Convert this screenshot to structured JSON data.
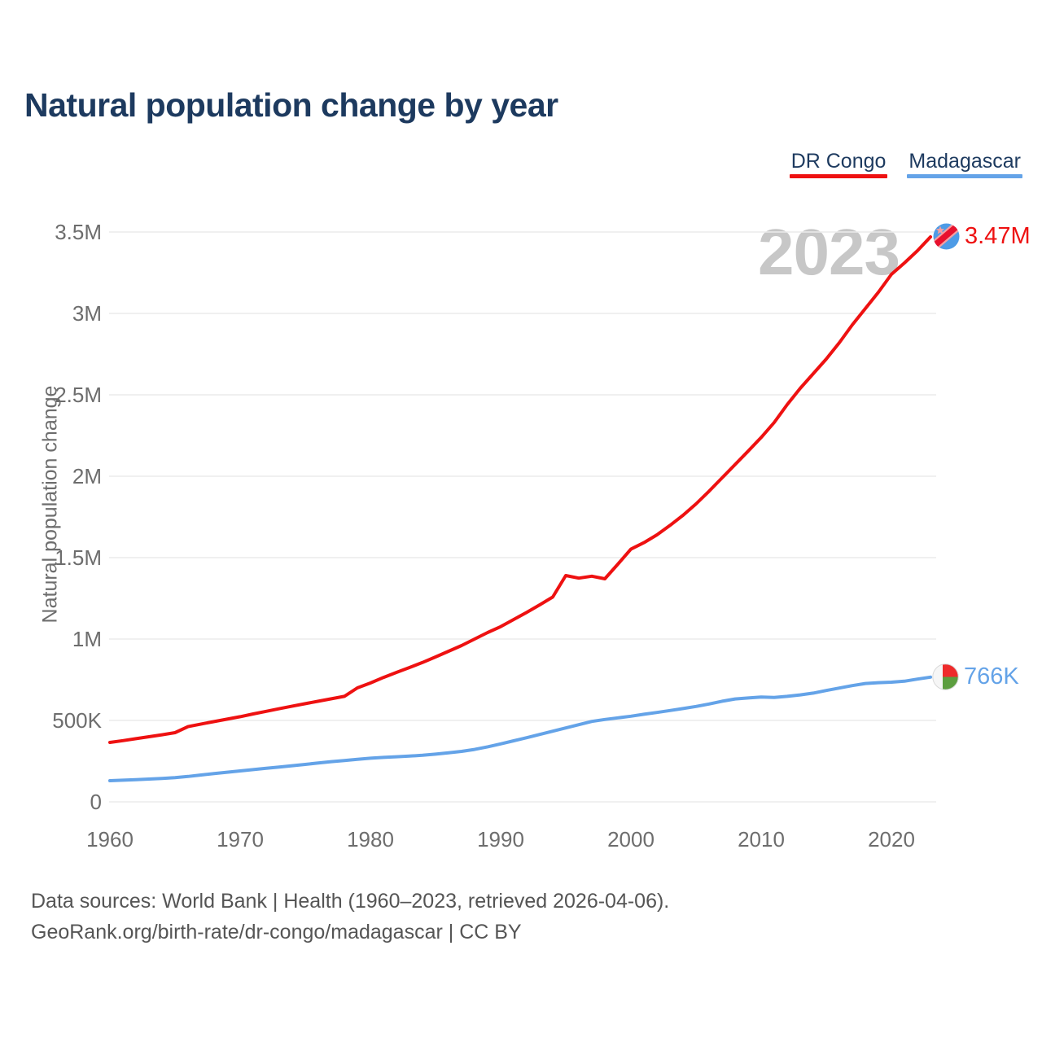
{
  "title": "Natural population change by year",
  "watermark": "2023",
  "colors": {
    "dr_congo": "#ee1111",
    "madagascar": "#64a3e8",
    "title_navy": "#1d3a5f",
    "tick_gray": "#6d6d6d",
    "gridline": "#ececec",
    "watermark_gray": "#c7c7c7",
    "footer_gray": "#555555"
  },
  "legend": {
    "items": [
      {
        "label": "DR Congo",
        "color": "#ee1111"
      },
      {
        "label": "Madagascar",
        "color": "#64a3e8"
      }
    ]
  },
  "y_axis": {
    "title": "Natural population change",
    "ticks": [
      {
        "value": 3500000,
        "label": "3.5M"
      },
      {
        "value": 3000000,
        "label": "3M"
      },
      {
        "value": 2500000,
        "label": "2.5M"
      },
      {
        "value": 2000000,
        "label": "2M"
      },
      {
        "value": 1500000,
        "label": "1.5M"
      },
      {
        "value": 1000000,
        "label": "1M"
      },
      {
        "value": 500000,
        "label": "500K"
      },
      {
        "value": 0,
        "label": "0"
      }
    ]
  },
  "x_axis": {
    "ticks": [
      {
        "value": 1960,
        "label": "1960"
      },
      {
        "value": 1970,
        "label": "1970"
      },
      {
        "value": 1980,
        "label": "1980"
      },
      {
        "value": 1990,
        "label": "1990"
      },
      {
        "value": 2000,
        "label": "2000"
      },
      {
        "value": 2010,
        "label": "2010"
      },
      {
        "value": 2020,
        "label": "2020"
      }
    ]
  },
  "end_labels": {
    "dr_congo": "3.47M",
    "madagascar": "766K"
  },
  "footer": {
    "line1": "Data sources: World Bank | Health (1960–2023, retrieved 2026-04-06).",
    "line2": "GeoRank.org/birth-rate/dr-congo/madagascar | CC BY"
  },
  "chart_data": {
    "type": "line",
    "title": "Natural population change by year",
    "xlabel": "year",
    "ylabel": "Natural population change",
    "xlim": [
      1960,
      2023
    ],
    "ylim": [
      0,
      3500000
    ],
    "grid": "horizontal",
    "legend_position": "top-right",
    "x": [
      1960,
      1961,
      1962,
      1963,
      1964,
      1965,
      1966,
      1967,
      1968,
      1969,
      1970,
      1971,
      1972,
      1973,
      1974,
      1975,
      1976,
      1977,
      1978,
      1979,
      1980,
      1981,
      1982,
      1983,
      1984,
      1985,
      1986,
      1987,
      1988,
      1989,
      1990,
      1991,
      1992,
      1993,
      1994,
      1995,
      1996,
      1997,
      1998,
      1999,
      2000,
      2001,
      2002,
      2003,
      2004,
      2005,
      2006,
      2007,
      2008,
      2009,
      2010,
      2011,
      2012,
      2013,
      2014,
      2015,
      2016,
      2017,
      2018,
      2019,
      2020,
      2021,
      2022,
      2023
    ],
    "series": [
      {
        "name": "DR Congo",
        "color": "#ee1111",
        "end_label": "3.47M",
        "values": [
          365000,
          376000,
          388000,
          400000,
          412000,
          425000,
          462000,
          478000,
          493000,
          508000,
          523000,
          540000,
          556000,
          572000,
          588000,
          603000,
          618000,
          633000,
          648000,
          700000,
          730000,
          764000,
          795000,
          825000,
          856000,
          890000,
          925000,
          960000,
          1000000,
          1040000,
          1076000,
          1120000,
          1164000,
          1210000,
          1258000,
          1390000,
          1374000,
          1386000,
          1370000,
          1460000,
          1552000,
          1592000,
          1640000,
          1698000,
          1760000,
          1830000,
          1908000,
          1990000,
          2072000,
          2154000,
          2238000,
          2330000,
          2440000,
          2540000,
          2630000,
          2720000,
          2820000,
          2930000,
          3030000,
          3130000,
          3240000,
          3310000,
          3385000,
          3470000
        ]
      },
      {
        "name": "Madagascar",
        "color": "#64a3e8",
        "end_label": "766K",
        "values": [
          130000,
          133000,
          136000,
          140000,
          144000,
          149000,
          156000,
          165000,
          174000,
          182000,
          190000,
          198000,
          206000,
          214000,
          222000,
          230000,
          239000,
          247000,
          254000,
          261000,
          268000,
          273000,
          277000,
          281000,
          286000,
          293000,
          301000,
          310000,
          322000,
          338000,
          356000,
          375000,
          394000,
          414000,
          434000,
          454000,
          474000,
          494000,
          506000,
          516000,
          526000,
          538000,
          549000,
          561000,
          573000,
          586000,
          601000,
          618000,
          632000,
          638000,
          644000,
          641000,
          648000,
          657000,
          668000,
          684000,
          699000,
          714000,
          727000,
          732000,
          735000,
          741000,
          754000,
          766000
        ]
      }
    ]
  }
}
